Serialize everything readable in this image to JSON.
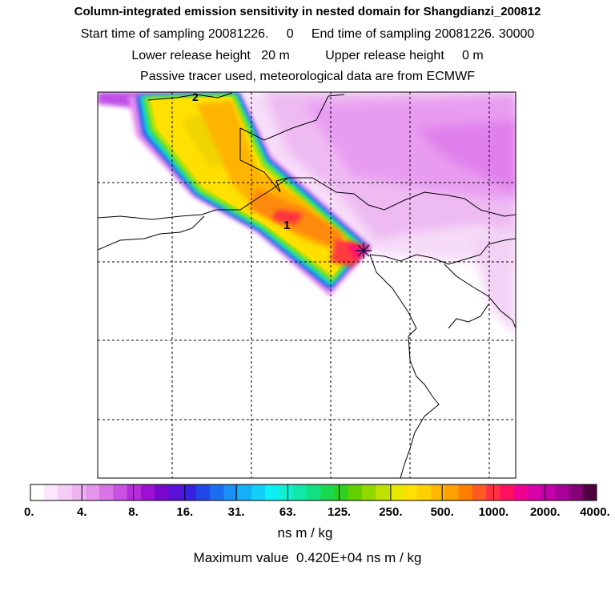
{
  "header": {
    "title": "Column-integrated emission sensitivity in nested domain for Shangdianzi_200812",
    "sampling_line": "Start time of sampling 20081226.     0     End time of sampling 20081226. 30000",
    "release_line": "Lower release height   20 m          Upper release height     0 m",
    "tracer_line": "Passive tracer used, meteorological data are from ECMWF"
  },
  "map": {
    "contour_labels": [
      "2",
      "1"
    ],
    "receptor_marker": "star-marker"
  },
  "colorbar": {
    "tick_labels": [
      "0.",
      "4.",
      "8.",
      "16.",
      "31.",
      "63.",
      "125.",
      "250.",
      "500.",
      "1000.",
      "2000.",
      "4000."
    ],
    "colors": [
      "#ffffff",
      "#fbe6fb",
      "#f5cdf5",
      "#eeb2f0",
      "#e595ec",
      "#d874e6",
      "#c851e0",
      "#b62cd9",
      "#9b10d3",
      "#7a08cc",
      "#5a10d6",
      "#3a20e0",
      "#2048e8",
      "#1c6ef0",
      "#1890f5",
      "#14b0f8",
      "#10d0fa",
      "#0cf0f5",
      "#10f0d0",
      "#10e8a8",
      "#10e080",
      "#18d850",
      "#30d020",
      "#60d000",
      "#90d800",
      "#c0e000",
      "#e8e800",
      "#ffe000",
      "#ffd000",
      "#ffb800",
      "#ffa000",
      "#ff8000",
      "#ff5a20",
      "#ff3040",
      "#ff1060",
      "#f00090",
      "#d800a8",
      "#c000a8",
      "#a80098",
      "#880078",
      "#500040"
    ],
    "units": "ns m / kg",
    "max_label": "Maximum value  0.420E+04 ns m / kg"
  }
}
